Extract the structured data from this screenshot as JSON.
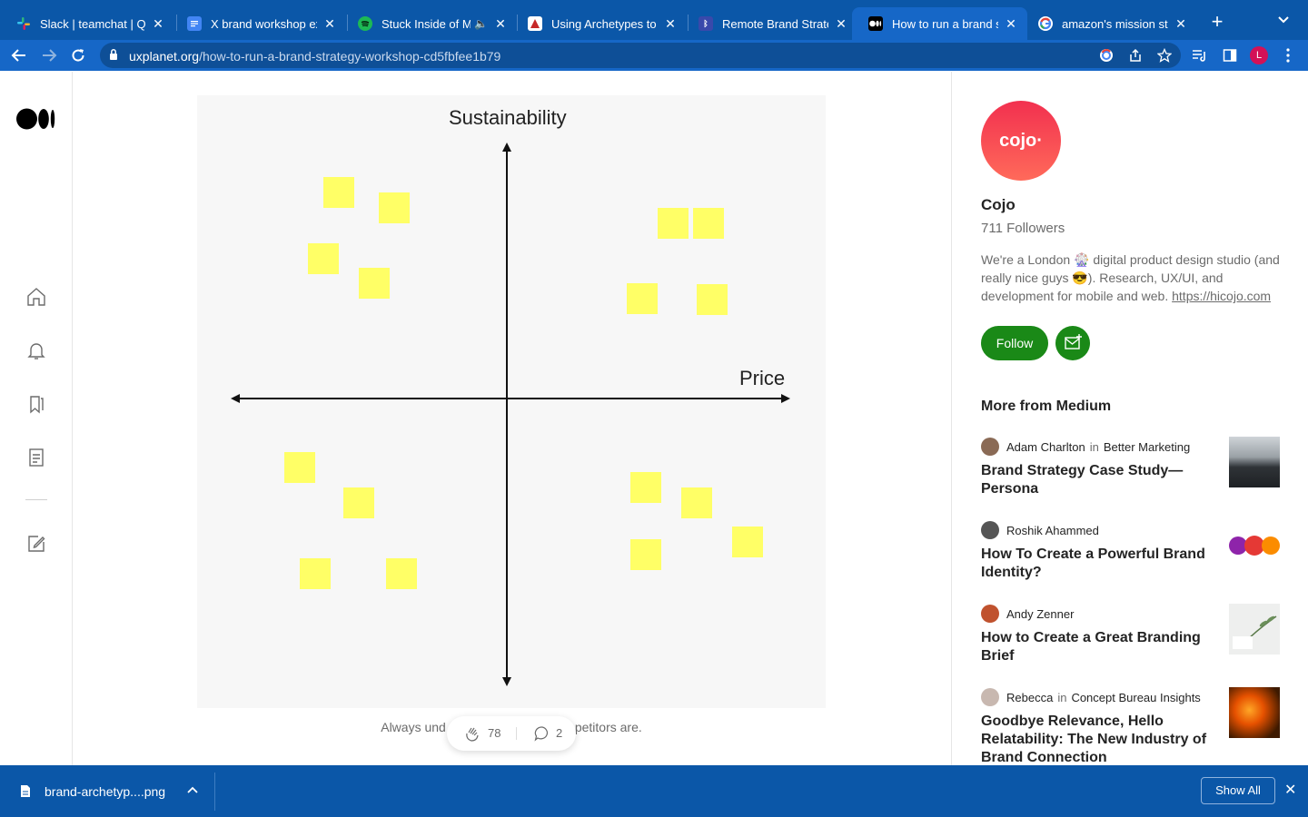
{
  "browser": {
    "tabs": [
      {
        "title": "Slack | teamchat | Qu",
        "icon": "slack-icon",
        "color": "#e01e5a"
      },
      {
        "title": "X brand workshop exe",
        "icon": "docs-icon",
        "color": "#4285f4"
      },
      {
        "title": "Stuck Inside of Mo",
        "icon": "spotify-icon",
        "color": "#1db954"
      },
      {
        "title": "Using Archetypes to D",
        "icon": "archetype-icon",
        "color": "#c62828"
      },
      {
        "title": "Remote Brand Strateg",
        "icon": "bluetooth-icon",
        "color": "#3949ab"
      },
      {
        "title": "How to run a brand st",
        "icon": "medium-icon",
        "color": "#000000",
        "active": true
      },
      {
        "title": "amazon's mission sta",
        "icon": "google-icon",
        "color": "#ffffff"
      }
    ],
    "new_tab": "+",
    "url_domain": "uxplanet.org",
    "url_path": "/how-to-run-a-brand-strategy-workshop-cd5fbfee1b79",
    "profile_initial": "L"
  },
  "article": {
    "figure": {
      "y_axis_label": "Sustainability",
      "x_axis_label": "Price"
    },
    "caption_left": "Always und",
    "caption_right": "petitors are.",
    "claps": "78",
    "comments": "2"
  },
  "author": {
    "logo_text": "cojo·",
    "name": "Cojo",
    "followers": "711 Followers",
    "bio_1": "We're a London 🎡 digital product design studio (and really nice guys 😎). Research, UX/UI, and development for mobile and web. ",
    "bio_link": "https://hicojo.com",
    "follow_label": "Follow"
  },
  "more_from_medium": {
    "heading": "More from Medium",
    "stories": [
      {
        "author": "Adam Charlton",
        "in": "in",
        "publication": "Better Marketing",
        "title": "Brand Strategy Case Study—Persona"
      },
      {
        "author": "Roshik Ahammed",
        "in": "",
        "publication": "",
        "title": "How To Create a Powerful Brand Identity?"
      },
      {
        "author": "Andy Zenner",
        "in": "",
        "publication": "",
        "title": "How to Create a Great Branding Brief"
      },
      {
        "author": "Rebecca",
        "in": "in",
        "publication": "Concept Bureau Insights",
        "title": "Goodbye Relevance, Hello Relatability: The New Industry of Brand Connection"
      }
    ]
  },
  "downloads": {
    "file_name": "brand-archetyp....png",
    "show_all": "Show All"
  }
}
